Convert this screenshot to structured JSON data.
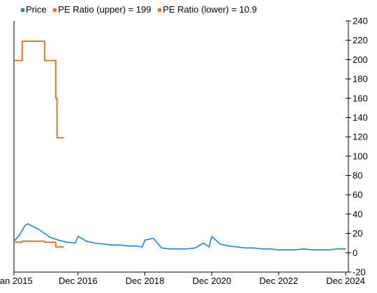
{
  "chart_data": {
    "type": "line",
    "title": "",
    "xlabel": "",
    "ylabel": "",
    "ylim": [
      -20,
      240
    ],
    "y_axis_position": "right",
    "grid": false,
    "legend_position": "top-left",
    "y_ticks": [
      -20,
      0,
      20,
      40,
      60,
      80,
      100,
      120,
      140,
      160,
      180,
      200,
      220,
      240
    ],
    "y_tick_labels": [
      "-20",
      "0",
      "20",
      "40",
      "60",
      "80",
      "100",
      "120",
      "140",
      "160",
      "180",
      "200",
      "220",
      "240"
    ],
    "x_range": [
      "2015-01-01",
      "2024-12-31"
    ],
    "x_ticks": [
      "2015-01-01",
      "2016-12-01",
      "2018-12-01",
      "2020-12-01",
      "2022-12-01",
      "2024-12-01"
    ],
    "x_tick_labels": [
      "Jan 2015",
      "Dec 2016",
      "Dec 2018",
      "Dec 2020",
      "Dec 2022",
      "Dec 2024"
    ],
    "series": [
      {
        "name": "Price",
        "color": "#1f7fe0",
        "x": [
          "2015-01-01",
          "2015-03-01",
          "2015-05-01",
          "2015-06-01",
          "2015-08-01",
          "2015-10-01",
          "2015-12-01",
          "2016-02-01",
          "2016-05-01",
          "2016-08-01",
          "2016-11-01",
          "2016-12-01",
          "2017-03-01",
          "2017-06-01",
          "2017-09-01",
          "2017-12-01",
          "2018-03-01",
          "2018-06-01",
          "2018-09-01",
          "2018-11-01",
          "2018-12-01",
          "2019-03-01",
          "2019-06-01",
          "2019-09-01",
          "2019-12-01",
          "2020-03-01",
          "2020-06-01",
          "2020-09-01",
          "2020-11-01",
          "2020-12-01",
          "2021-03-01",
          "2021-06-01",
          "2021-09-01",
          "2021-12-01",
          "2022-03-01",
          "2022-06-01",
          "2022-09-01",
          "2022-12-01",
          "2023-03-01",
          "2023-06-01",
          "2023-09-01",
          "2023-12-01",
          "2024-03-01",
          "2024-06-01",
          "2024-09-01",
          "2024-12-01"
        ],
        "y": [
          12,
          18,
          28,
          30,
          27,
          24,
          20,
          16,
          13,
          11,
          10,
          17,
          12,
          10,
          9,
          8,
          8,
          7,
          7,
          6,
          13,
          15,
          5,
          4,
          4,
          4,
          5,
          10,
          6,
          17,
          9,
          7,
          6,
          5,
          5,
          4,
          4,
          3,
          3,
          3,
          4,
          3,
          3,
          3,
          4,
          4
        ]
      },
      {
        "name": "PE Ratio (upper) = 199",
        "color": "#e8742c",
        "x": [
          "2015-01-01",
          "2015-04-01",
          "2015-04-02",
          "2015-12-01",
          "2015-12-02",
          "2016-04-01",
          "2016-04-02",
          "2016-04-15",
          "2016-04-16",
          "2016-07-01"
        ],
        "y": [
          199,
          199,
          219,
          219,
          199,
          199,
          160,
          160,
          119,
          119
        ]
      },
      {
        "name": "PE Ratio (lower) = 10.9",
        "color": "#e8742c",
        "x": [
          "2015-01-01",
          "2015-04-01",
          "2015-04-02",
          "2015-12-01",
          "2015-12-02",
          "2016-04-01",
          "2016-04-02",
          "2016-07-01"
        ],
        "y": [
          10.9,
          10.9,
          12,
          12,
          10.9,
          10.9,
          6,
          6
        ]
      }
    ]
  }
}
